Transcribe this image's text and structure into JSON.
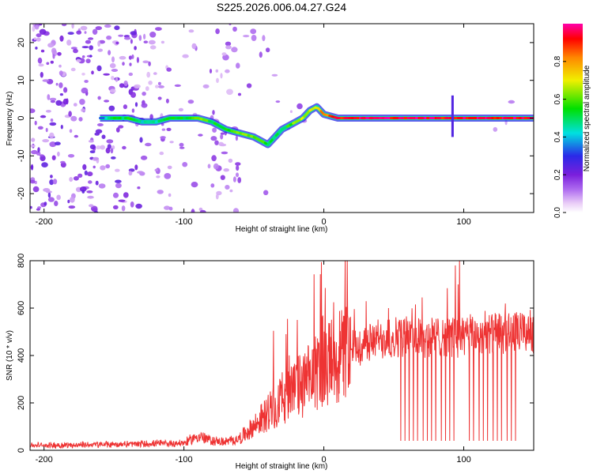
{
  "title": "S225.2026.006.04.27.G24",
  "colors": {
    "snr_line": "#ee3333",
    "spectrum_low": "#7a1fdc",
    "frame": "#000000"
  },
  "chart_data": [
    {
      "type": "heatmap",
      "name": "spectrogram",
      "xlabel": "Height of straight line (km)",
      "ylabel": "Frequency (Hz)",
      "xlim": [
        -210,
        150
      ],
      "ylim": [
        -25,
        25
      ],
      "xticks": [
        {
          "value": -200,
          "label": "-200"
        },
        {
          "value": -100,
          "label": "-100"
        },
        {
          "value": 0,
          "label": "0"
        },
        {
          "value": 100,
          "label": "100"
        }
      ],
      "yticks": [
        {
          "value": -20,
          "label": "-20"
        },
        {
          "value": -10,
          "label": "-10"
        },
        {
          "value": 0,
          "label": "0"
        },
        {
          "value": 10,
          "label": "10"
        },
        {
          "value": 20,
          "label": "20"
        }
      ],
      "ridge": {
        "heights": [
          -160,
          -150,
          -140,
          -130,
          -120,
          -110,
          -100,
          -90,
          -80,
          -70,
          -60,
          -50,
          -45,
          -40,
          -35,
          -30,
          -25,
          -20,
          -15,
          -10,
          -5,
          0,
          10,
          20,
          40,
          60,
          80,
          90,
          100,
          120,
          150
        ],
        "frequencies": [
          0,
          0,
          0,
          -1,
          -1,
          0,
          0,
          0,
          -1,
          -3,
          -4,
          -5,
          -6,
          -7,
          -5,
          -3,
          -2,
          -1,
          0,
          2,
          3,
          1,
          0,
          0,
          0,
          0,
          0,
          0,
          0,
          0,
          0
        ],
        "amplitudes": [
          0.35,
          0.5,
          0.55,
          0.45,
          0.45,
          0.55,
          0.55,
          0.6,
          0.55,
          0.55,
          0.6,
          0.6,
          0.6,
          0.55,
          0.5,
          0.5,
          0.6,
          0.65,
          0.65,
          0.7,
          0.75,
          0.85,
          0.9,
          0.95,
          0.95,
          0.95,
          0.95,
          0.9,
          0.95,
          0.95,
          0.95
        ]
      },
      "colorbar": {
        "label": "Normalized spectral amplitude",
        "range": [
          0,
          1
        ],
        "ticks": [
          {
            "value": 0.0,
            "label": "0.0"
          },
          {
            "value": 0.2,
            "label": "0.2"
          },
          {
            "value": 0.4,
            "label": "0.4"
          },
          {
            "value": 0.6,
            "label": "0.6"
          },
          {
            "value": 0.8,
            "label": "0.8"
          }
        ]
      }
    },
    {
      "type": "line",
      "name": "snr",
      "xlabel": "Height of straight line (km)",
      "ylabel": "SNR (10 * v/v)",
      "xlim": [
        -210,
        150
      ],
      "ylim": [
        0,
        800
      ],
      "xticks": [
        {
          "value": -200,
          "label": "-200"
        },
        {
          "value": -100,
          "label": "-100"
        },
        {
          "value": 0,
          "label": "0"
        },
        {
          "value": 100,
          "label": "100"
        }
      ],
      "yticks": [
        {
          "value": 0,
          "label": "0"
        },
        {
          "value": 200,
          "label": "200"
        },
        {
          "value": 400,
          "label": "400"
        },
        {
          "value": 600,
          "label": "600"
        },
        {
          "value": 800,
          "label": "800"
        }
      ],
      "trend": {
        "heights": [
          -210,
          -150,
          -100,
          -90,
          -80,
          -70,
          -60,
          -50,
          -40,
          -30,
          -20,
          -10,
          0,
          10,
          20,
          30,
          40,
          50,
          60,
          80,
          100,
          120,
          150
        ],
        "snr": [
          20,
          25,
          30,
          60,
          40,
          35,
          50,
          100,
          160,
          220,
          260,
          300,
          350,
          400,
          430,
          450,
          470,
          480,
          480,
          480,
          480,
          490,
          500
        ]
      },
      "dropouts": [
        55,
        58,
        61,
        64,
        67,
        71,
        74,
        77,
        80,
        84,
        87,
        90,
        93,
        104,
        107,
        111,
        114,
        117,
        121,
        124,
        127,
        131,
        134,
        137
      ],
      "dropout_level": 40,
      "spikes": [
        {
          "height": -19,
          "snr": 550
        },
        {
          "height": -1,
          "snr": 560
        },
        {
          "height": -6,
          "snr": 480
        },
        {
          "height": 94,
          "snr": 780
        },
        {
          "height": 97,
          "snr": 810
        },
        {
          "height": 96,
          "snr": 700
        },
        {
          "height": 148,
          "snr": 560
        }
      ]
    }
  ]
}
